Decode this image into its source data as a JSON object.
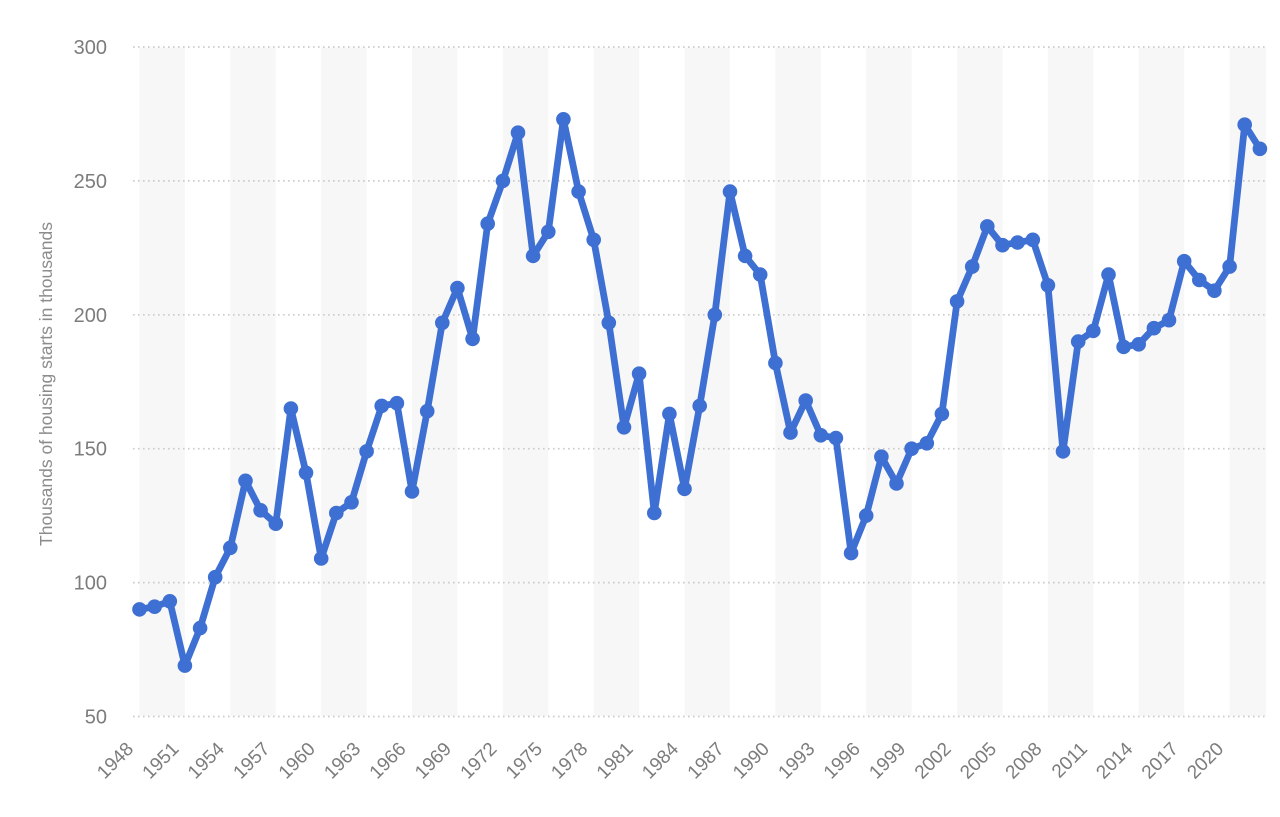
{
  "chart_data": {
    "type": "line",
    "ylabel": "Thousands of housing starts in thousands",
    "x": [
      1948,
      1949,
      1950,
      1951,
      1952,
      1953,
      1954,
      1955,
      1956,
      1957,
      1958,
      1959,
      1960,
      1961,
      1962,
      1963,
      1964,
      1965,
      1966,
      1967,
      1968,
      1969,
      1970,
      1971,
      1972,
      1973,
      1974,
      1975,
      1976,
      1977,
      1978,
      1979,
      1980,
      1981,
      1982,
      1983,
      1984,
      1985,
      1986,
      1987,
      1988,
      1989,
      1990,
      1991,
      1992,
      1993,
      1994,
      1995,
      1996,
      1997,
      1998,
      1999,
      2000,
      2001,
      2002,
      2003,
      2004,
      2005,
      2006,
      2007,
      2008,
      2009,
      2010,
      2011,
      2012,
      2013,
      2014,
      2015,
      2016,
      2017,
      2018,
      2019,
      2020,
      2021,
      2022
    ],
    "values": [
      90,
      91,
      93,
      69,
      83,
      102,
      113,
      138,
      127,
      122,
      165,
      141,
      109,
      126,
      130,
      149,
      166,
      167,
      134,
      164,
      197,
      210,
      191,
      234,
      250,
      268,
      222,
      231,
      273,
      246,
      228,
      197,
      158,
      178,
      126,
      163,
      135,
      166,
      200,
      246,
      222,
      215,
      182,
      156,
      168,
      155,
      154,
      111,
      125,
      147,
      137,
      150,
      152,
      163,
      205,
      218,
      233,
      226,
      227,
      228,
      211,
      149,
      190,
      194,
      215,
      188,
      189,
      195,
      198,
      220,
      213,
      209,
      218,
      271,
      262
    ],
    "y_ticks": [
      50,
      100,
      150,
      200,
      250,
      300
    ],
    "ylim": [
      50,
      300
    ],
    "x_tick_labels": [
      "1948",
      "1951",
      "1954",
      "1957",
      "1960",
      "1963",
      "1966",
      "1969",
      "1972",
      "1975",
      "1978",
      "1981",
      "1984",
      "1987",
      "1990",
      "1993",
      "1996",
      "1999",
      "2002",
      "2005",
      "2008",
      "2011",
      "2014",
      "2017",
      "2020"
    ],
    "x_tick_step": 3,
    "grid": "horizontal-dotted",
    "legend": "none",
    "plot_bands": "alternating 3-year vertical stripes starting grey at 1948"
  },
  "colors": {
    "series": "#3E6FD2",
    "band": "#F7F7F7",
    "gridline": "#CBCBCB",
    "tick_label": "#7C7C7C",
    "axis_title": "#8C8C8C",
    "background": "#FFFFFF"
  }
}
